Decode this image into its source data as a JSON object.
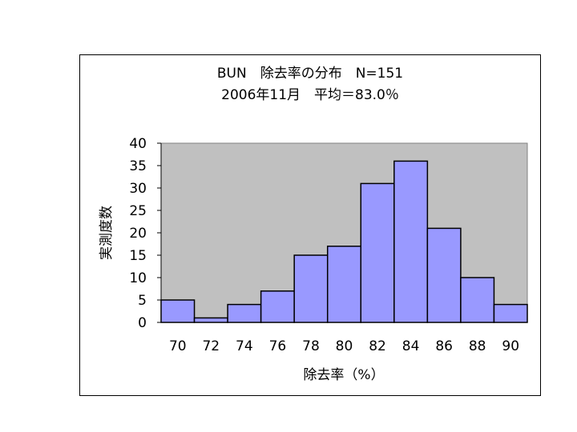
{
  "chart_data": {
    "type": "bar",
    "title": "BUN　除去率の分布　N=151",
    "subtitle": "2006年11月　平均＝83.0％",
    "xlabel": "除去率（%）",
    "ylabel": "実測度数",
    "categories": [
      "70",
      "72",
      "74",
      "76",
      "78",
      "80",
      "82",
      "84",
      "86",
      "88",
      "90"
    ],
    "values": [
      5,
      1,
      4,
      7,
      15,
      17,
      31,
      36,
      21,
      10,
      4
    ],
    "ylim": [
      0,
      40
    ],
    "yticks": [
      0,
      5,
      10,
      15,
      20,
      25,
      30,
      35,
      40
    ],
    "grid": false,
    "legend": "none",
    "colors": {
      "bar": "#9999ff",
      "bar_border": "#000000",
      "plot_bg": "#c0c0c0",
      "frame": "#000000"
    }
  }
}
